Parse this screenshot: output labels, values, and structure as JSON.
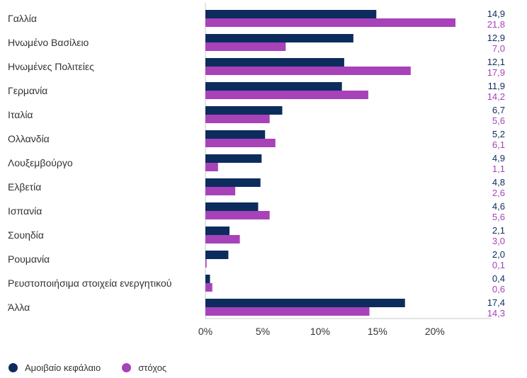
{
  "colors": {
    "series1": "#0d2c5e",
    "series2": "#a742b9",
    "axis": "#c8c8c8",
    "grid": "#e6e6e6"
  },
  "legend": {
    "items": [
      "Αμοιβαίο κεφάλαιο",
      "στόχος"
    ]
  },
  "chart_data": {
    "type": "bar",
    "orientation": "horizontal",
    "categories": [
      "Γαλλία",
      "Ηνωμένο Βασίλειο",
      "Ηνωμένες Πολιτείες",
      "Γερμανία",
      "Ιταλία",
      "Ολλανδία",
      "Λουξεμβούργο",
      "Ελβετία",
      "Ισπανία",
      "Σουηδία",
      "Ρουμανία",
      "Ρευστοποιήσιμα στοιχεία ενεργητικού",
      "Άλλα"
    ],
    "series": [
      {
        "name": "Αμοιβαίο κεφάλαιο",
        "values": [
          14.9,
          12.9,
          12.1,
          11.9,
          6.7,
          5.2,
          4.9,
          4.8,
          4.6,
          2.1,
          2.0,
          0.4,
          17.4
        ],
        "labels": [
          "14,9",
          "12,9",
          "12,1",
          "11,9",
          "6,7",
          "5,2",
          "4,9",
          "4,8",
          "4,6",
          "2,1",
          "2,0",
          "0,4",
          "17,4"
        ]
      },
      {
        "name": "στόχος",
        "values": [
          21.8,
          7.0,
          17.9,
          14.2,
          5.6,
          6.1,
          1.1,
          2.6,
          5.6,
          3.0,
          0.1,
          0.6,
          14.3
        ],
        "labels": [
          "21,8",
          "7,0",
          "17,9",
          "14,2",
          "5,6",
          "6,1",
          "1,1",
          "2,6",
          "5,6",
          "3,0",
          "0,1",
          "0,6",
          "14,3"
        ]
      }
    ],
    "xlim": [
      0,
      25
    ],
    "xticks": [
      0,
      5,
      10,
      15,
      20
    ],
    "xtick_labels": [
      "0%",
      "5%",
      "10%",
      "15%",
      "20%"
    ],
    "grid": false,
    "legend_position": "bottom-left"
  }
}
